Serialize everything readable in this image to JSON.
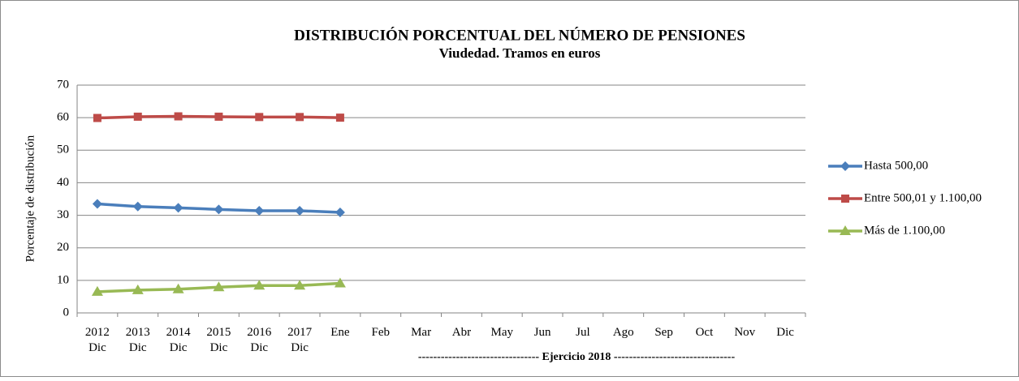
{
  "chart_data": {
    "type": "line",
    "title": "DISTRIBUCIÓN PORCENTUAL DEL NÚMERO DE PENSIONES",
    "subtitle": "Viudedad. Tramos en euros",
    "y_label": "Porcentaje de distribución",
    "annotation": "-------------------------------- Ejercicio 2018 --------------------------------",
    "categories": [
      "2012 Dic",
      "2013 Dic",
      "2014 Dic",
      "2015 Dic",
      "2016 Dic",
      "2017 Dic",
      "Ene",
      "Feb",
      "Mar",
      "Abr",
      "May",
      "Jun",
      "Jul",
      "Ago",
      "Sep",
      "Oct",
      "Nov",
      "Dic"
    ],
    "series": [
      {
        "name": "Hasta 500,00",
        "color": "#4a7ebb",
        "marker": "diamond",
        "values": [
          33.5,
          32.7,
          32.3,
          31.8,
          31.4,
          31.4,
          30.9,
          null,
          null,
          null,
          null,
          null,
          null,
          null,
          null,
          null,
          null,
          null
        ]
      },
      {
        "name": "Entre 500,01 y 1.100,00",
        "color": "#be4b48",
        "marker": "square",
        "values": [
          59.9,
          60.3,
          60.4,
          60.3,
          60.2,
          60.2,
          60.0,
          null,
          null,
          null,
          null,
          null,
          null,
          null,
          null,
          null,
          null,
          null
        ]
      },
      {
        "name": "Más de 1.100,00",
        "color": "#98b954",
        "marker": "triangle",
        "values": [
          6.5,
          7.0,
          7.3,
          7.9,
          8.4,
          8.4,
          9.1,
          null,
          null,
          null,
          null,
          null,
          null,
          null,
          null,
          null,
          null,
          null
        ]
      }
    ],
    "ylim": [
      0,
      70
    ],
    "yticks": [
      0,
      10,
      20,
      30,
      40,
      50,
      60,
      70
    ],
    "grid": true,
    "legend": "right"
  }
}
